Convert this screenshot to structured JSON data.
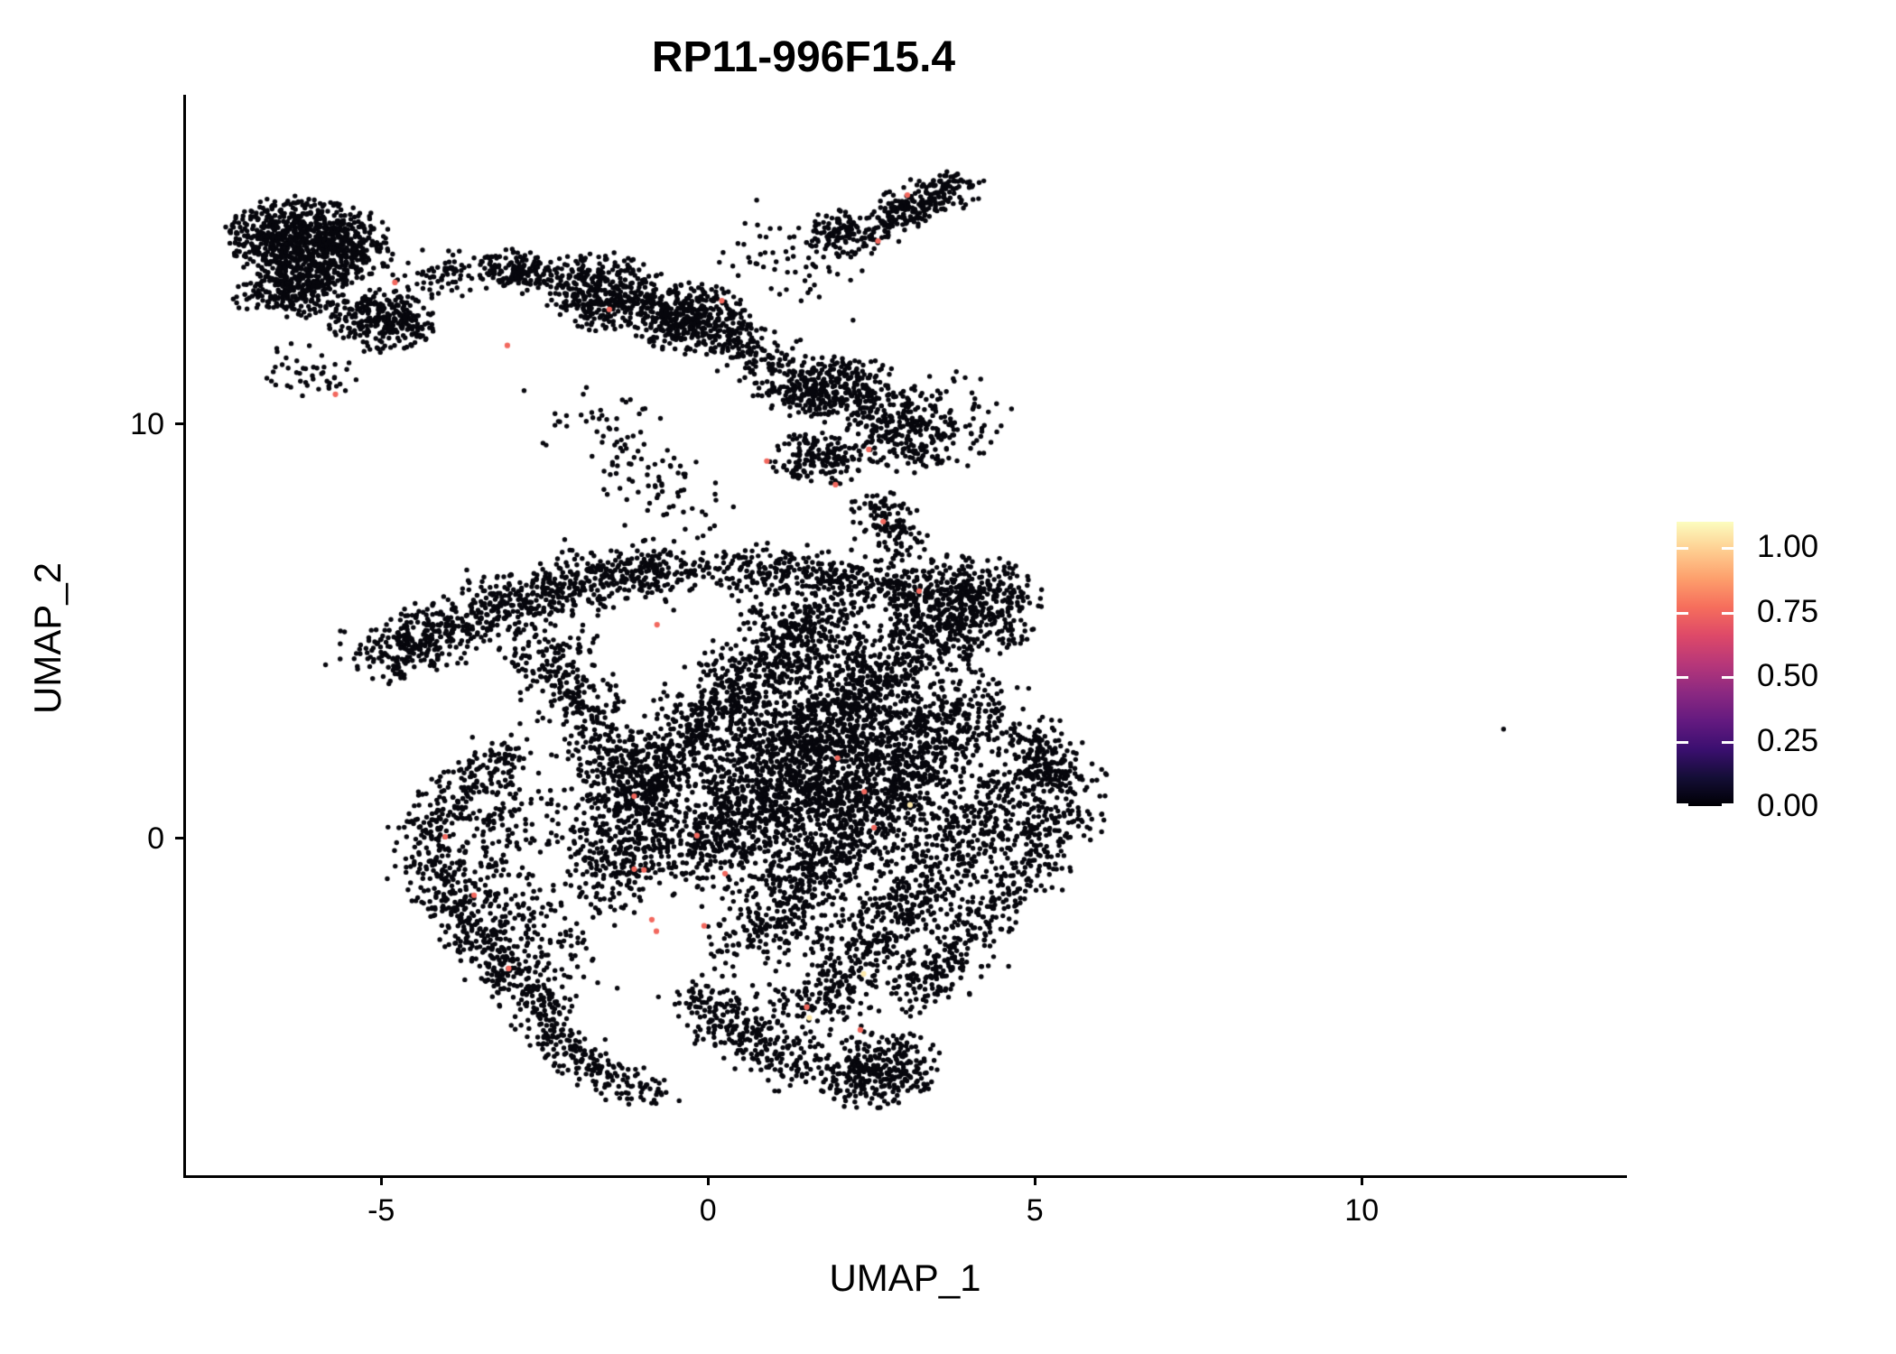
{
  "chart_data": {
    "type": "scatter",
    "title": "RP11-996F15.4",
    "xlabel": "UMAP_1",
    "ylabel": "UMAP_2",
    "axes": {
      "x": {
        "lim": [
          -8.0,
          14.03
        ],
        "ticks": [
          {
            "value": -5,
            "label": "-5"
          },
          {
            "value": 0,
            "label": "0"
          },
          {
            "value": 5,
            "label": "5"
          },
          {
            "value": 10,
            "label": "10"
          }
        ]
      },
      "y": {
        "lim": [
          -8.13,
          17.95
        ],
        "ticks": [
          {
            "value": 0,
            "label": "0"
          },
          {
            "value": 10,
            "label": "10"
          }
        ]
      }
    },
    "legend": {
      "position": "right",
      "bar_max_value": 1.097,
      "ticks": [
        {
          "value": 1.0,
          "label": "1.00"
        },
        {
          "value": 0.75,
          "label": "0.75"
        },
        {
          "value": 0.5,
          "label": "0.50"
        },
        {
          "value": 0.25,
          "label": "0.25"
        },
        {
          "value": 0.0,
          "label": "0.00"
        }
      ],
      "colormap_name": "magma",
      "colormap_stops": [
        [
          0.0,
          "#000004"
        ],
        [
          0.1,
          "#140e36"
        ],
        [
          0.2,
          "#3b0f70"
        ],
        [
          0.3,
          "#641a80"
        ],
        [
          0.4,
          "#8c2981"
        ],
        [
          0.5,
          "#b73779"
        ],
        [
          0.6,
          "#de4968"
        ],
        [
          0.7,
          "#f66e5c"
        ],
        [
          0.8,
          "#fd9f6c"
        ],
        [
          0.9,
          "#fece91"
        ],
        [
          1.0,
          "#fcfdbf"
        ]
      ]
    },
    "point_style": {
      "zero_color": "#07070d",
      "radius": 2.7,
      "highlight_radius": 3.1
    },
    "clusters": [
      {
        "name": "topleft-main",
        "type": "blob",
        "c": [
          -6.1,
          14.4
        ],
        "r": [
          1.2,
          1.0
        ],
        "rot": -20,
        "n": 950
      },
      {
        "name": "topleft-lower",
        "type": "blob",
        "c": [
          -6.35,
          13.2
        ],
        "r": [
          0.85,
          0.6
        ],
        "rot": 10,
        "n": 260
      },
      {
        "name": "topleft-tail",
        "type": "blob",
        "c": [
          -5.0,
          12.5
        ],
        "r": [
          0.8,
          0.7
        ],
        "rot": -35,
        "n": 300
      },
      {
        "name": "topleft-under-sparse",
        "type": "band",
        "path": [
          [
            -6.8,
            11.5
          ],
          [
            -5.6,
            11.0
          ]
        ],
        "w": 0.5,
        "n": 45
      },
      {
        "name": "bridge-left",
        "type": "band",
        "path": [
          [
            -4.5,
            13.5
          ],
          [
            -3.5,
            13.8
          ]
        ],
        "w": 0.55,
        "n": 80
      },
      {
        "name": "midtop-a",
        "type": "blob",
        "c": [
          -2.9,
          13.7
        ],
        "r": [
          0.55,
          0.5
        ],
        "rot": 0,
        "n": 150
      },
      {
        "name": "midtop-b",
        "type": "blob",
        "c": [
          -1.6,
          13.2
        ],
        "r": [
          0.95,
          0.85
        ],
        "rot": -25,
        "n": 400
      },
      {
        "name": "midtop-c",
        "type": "blob",
        "c": [
          -0.3,
          12.55
        ],
        "r": [
          0.9,
          0.8
        ],
        "rot": -30,
        "n": 430
      },
      {
        "name": "midtop-arm",
        "type": "band",
        "path": [
          [
            0.35,
            12.2
          ],
          [
            1.2,
            11.0
          ],
          [
            1.85,
            10.45
          ]
        ],
        "w": 0.55,
        "n": 230
      },
      {
        "name": "top-sparse",
        "type": "band",
        "path": [
          [
            0.6,
            14.6
          ],
          [
            2.0,
            13.5
          ]
        ],
        "w": 0.8,
        "n": 60
      },
      {
        "name": "topmid-blob",
        "type": "blob",
        "c": [
          2.1,
          14.6
        ],
        "r": [
          0.6,
          0.55
        ],
        "rot": 0,
        "n": 140
      },
      {
        "name": "top-diagonal",
        "type": "band",
        "path": [
          [
            2.65,
            14.8
          ],
          [
            3.85,
            15.85
          ]
        ],
        "w": 0.4,
        "n": 240
      },
      {
        "name": "upper-mid-sparse",
        "type": "band",
        "path": [
          [
            -2.1,
            10.5
          ],
          [
            -0.9,
            8.7
          ],
          [
            -0.2,
            7.7
          ]
        ],
        "w": 0.8,
        "n": 110
      },
      {
        "name": "ring-a",
        "type": "blob",
        "c": [
          2.0,
          10.9
        ],
        "r": [
          0.85,
          0.75
        ],
        "rot": 0,
        "n": 240
      },
      {
        "name": "ring-b",
        "type": "blob",
        "c": [
          2.95,
          9.9
        ],
        "r": [
          0.75,
          1.05
        ],
        "rot": 20,
        "n": 250
      },
      {
        "name": "ring-c",
        "type": "blob",
        "c": [
          1.7,
          9.15
        ],
        "r": [
          0.75,
          0.6
        ],
        "rot": 0,
        "n": 170
      },
      {
        "name": "ring-right-sparse",
        "type": "band",
        "path": [
          [
            3.6,
            11.1
          ],
          [
            4.2,
            9.4
          ]
        ],
        "w": 0.6,
        "n": 60
      },
      {
        "name": "connector",
        "type": "band",
        "path": [
          [
            2.55,
            8.2
          ],
          [
            2.95,
            6.9
          ]
        ],
        "w": 0.45,
        "n": 120
      },
      {
        "name": "right-lobe",
        "type": "blob",
        "c": [
          3.9,
          5.55
        ],
        "r": [
          1.1,
          1.25
        ],
        "rot": -30,
        "n": 540
      },
      {
        "name": "left-band",
        "type": "band",
        "path": [
          [
            -5.0,
            4.3
          ],
          [
            -4.2,
            5.0
          ],
          [
            -3.0,
            5.7
          ],
          [
            -1.6,
            6.3
          ],
          [
            -0.5,
            6.6
          ]
        ],
        "w": 0.7,
        "n": 850
      },
      {
        "name": "band-to-mass",
        "type": "band",
        "path": [
          [
            -0.3,
            6.5
          ],
          [
            0.6,
            6.35
          ]
        ],
        "w": 0.5,
        "n": 60
      },
      {
        "name": "mass-top-edge",
        "type": "band",
        "path": [
          [
            0.6,
            6.6
          ],
          [
            2.2,
            6.3
          ],
          [
            3.3,
            5.9
          ]
        ],
        "w": 0.55,
        "n": 320
      },
      {
        "name": "mass-left-ridge",
        "type": "band",
        "path": [
          [
            -2.6,
            4.7
          ],
          [
            -1.9,
            3.2
          ],
          [
            -1.45,
            1.8
          ],
          [
            -1.15,
            0.4
          ],
          [
            -1.35,
            -0.9
          ]
        ],
        "w": 0.7,
        "n": 600
      },
      {
        "name": "mass-streak-1",
        "type": "band",
        "path": [
          [
            -1.2,
            1.0
          ],
          [
            0.3,
            3.3
          ],
          [
            1.3,
            4.9
          ],
          [
            2.0,
            5.8
          ]
        ],
        "w": 0.8,
        "n": 900
      },
      {
        "name": "mass-streak-2",
        "type": "band",
        "path": [
          [
            -0.3,
            -0.8
          ],
          [
            1.0,
            1.3
          ],
          [
            2.2,
            3.4
          ],
          [
            3.1,
            4.9
          ]
        ],
        "w": 0.85,
        "n": 950
      },
      {
        "name": "mass-streak-3",
        "type": "band",
        "path": [
          [
            0.6,
            -2.6
          ],
          [
            1.8,
            -0.5
          ],
          [
            3.0,
            1.6
          ],
          [
            4.1,
            3.4
          ]
        ],
        "w": 0.85,
        "n": 1000
      },
      {
        "name": "mass-streak-4",
        "type": "band",
        "path": [
          [
            1.5,
            -4.4
          ],
          [
            2.6,
            -2.4
          ],
          [
            3.8,
            -0.3
          ],
          [
            4.8,
            1.6
          ]
        ],
        "w": 0.8,
        "n": 820
      },
      {
        "name": "mass-streak-5",
        "type": "band",
        "path": [
          [
            3.1,
            -3.9
          ],
          [
            4.2,
            -2.0
          ],
          [
            5.1,
            -0.2
          ],
          [
            5.6,
            0.9
          ]
        ],
        "w": 0.6,
        "n": 430
      },
      {
        "name": "mass-right-edge",
        "type": "band",
        "path": [
          [
            4.9,
            2.6
          ],
          [
            5.5,
            1.2
          ]
        ],
        "w": 0.5,
        "n": 180
      },
      {
        "name": "mass-core-fill",
        "type": "blob",
        "c": [
          1.6,
          1.8
        ],
        "r": [
          3.2,
          2.4
        ],
        "rot": 55,
        "n": 1500
      },
      {
        "name": "mass-bottom-tip",
        "type": "blob",
        "c": [
          2.6,
          -5.6
        ],
        "r": [
          0.95,
          0.8
        ],
        "rot": 40,
        "n": 300
      },
      {
        "name": "mass-bottom-left-edge",
        "type": "band",
        "path": [
          [
            -0.3,
            -3.6
          ],
          [
            0.6,
            -4.8
          ],
          [
            1.5,
            -5.7
          ]
        ],
        "w": 0.55,
        "n": 280
      },
      {
        "name": "crescent-outer",
        "type": "band",
        "path": [
          [
            -3.0,
            2.2
          ],
          [
            -3.9,
            1.1
          ],
          [
            -4.3,
            0.1
          ],
          [
            -4.1,
            -1.2
          ],
          [
            -3.6,
            -2.3
          ],
          [
            -3.0,
            -3.3
          ],
          [
            -2.4,
            -4.5
          ],
          [
            -2.1,
            -5.3
          ]
        ],
        "w": 0.5,
        "n": 680
      },
      {
        "name": "crescent-inner",
        "type": "band",
        "path": [
          [
            -2.8,
            1.5
          ],
          [
            -3.4,
            0.3
          ],
          [
            -3.3,
            -1.0
          ],
          [
            -2.8,
            -2.2
          ],
          [
            -2.2,
            -3.4
          ]
        ],
        "w": 0.85,
        "n": 320
      },
      {
        "name": "crescent-tail",
        "type": "band",
        "path": [
          [
            -2.0,
            -5.2
          ],
          [
            -1.3,
            -5.9
          ],
          [
            -0.7,
            -6.3
          ]
        ],
        "w": 0.45,
        "n": 110
      },
      {
        "name": "crescent-mass-gap-sparse",
        "type": "band",
        "path": [
          [
            -2.0,
            0.5
          ],
          [
            -1.4,
            -0.6
          ],
          [
            -1.7,
            -1.9
          ]
        ],
        "w": 0.7,
        "n": 150
      }
    ],
    "outlier_point": {
      "x": 12.17,
      "y": 2.64,
      "value": 0.0
    },
    "highlighted_points": [
      {
        "x": -4.79,
        "y": 13.42,
        "value": 0.75
      },
      {
        "x": -3.07,
        "y": 11.9,
        "value": 0.75
      },
      {
        "x": -5.7,
        "y": 10.72,
        "value": 0.75
      },
      {
        "x": -1.51,
        "y": 12.77,
        "value": 0.75
      },
      {
        "x": 0.21,
        "y": 12.98,
        "value": 0.75
      },
      {
        "x": 3.05,
        "y": 15.53,
        "value": 0.75
      },
      {
        "x": 2.6,
        "y": 14.42,
        "value": 0.75
      },
      {
        "x": 0.9,
        "y": 9.11,
        "value": 0.75
      },
      {
        "x": 1.95,
        "y": 8.54,
        "value": 0.75
      },
      {
        "x": 2.46,
        "y": 9.39,
        "value": 0.75
      },
      {
        "x": 2.68,
        "y": 7.65,
        "value": 0.75
      },
      {
        "x": 3.23,
        "y": 5.97,
        "value": 0.75
      },
      {
        "x": -0.78,
        "y": 5.16,
        "value": 0.75
      },
      {
        "x": -1.13,
        "y": 1.02,
        "value": 0.75
      },
      {
        "x": -0.17,
        "y": 0.07,
        "value": 0.75
      },
      {
        "x": -1.13,
        "y": -0.74,
        "value": 0.75
      },
      {
        "x": -0.98,
        "y": -0.76,
        "value": 0.75
      },
      {
        "x": 0.26,
        "y": -0.85,
        "value": 0.75
      },
      {
        "x": -4.02,
        "y": 0.04,
        "value": 0.75
      },
      {
        "x": -3.58,
        "y": -1.37,
        "value": 0.75
      },
      {
        "x": -3.05,
        "y": -3.14,
        "value": 0.75
      },
      {
        "x": -0.86,
        "y": -1.96,
        "value": 0.75
      },
      {
        "x": -0.79,
        "y": -2.24,
        "value": 0.75
      },
      {
        "x": -0.06,
        "y": -2.11,
        "value": 0.75
      },
      {
        "x": 1.98,
        "y": 1.94,
        "value": 0.75
      },
      {
        "x": 2.39,
        "y": 1.13,
        "value": 0.75
      },
      {
        "x": 2.54,
        "y": 0.26,
        "value": 0.75
      },
      {
        "x": 1.51,
        "y": -4.07,
        "value": 0.75
      },
      {
        "x": 2.33,
        "y": -4.62,
        "value": 0.75
      },
      {
        "x": 3.09,
        "y": 0.81,
        "value": 1.05
      },
      {
        "x": 2.38,
        "y": -3.27,
        "value": 1.05
      },
      {
        "x": 1.55,
        "y": -4.33,
        "value": 1.05
      }
    ]
  }
}
